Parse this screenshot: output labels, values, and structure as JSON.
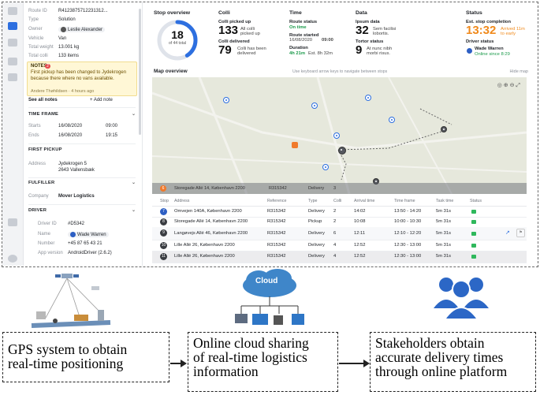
{
  "sidebar": {
    "route_id_label": "Route ID",
    "route_id_value": "R4123875712231312...",
    "type_label": "Type",
    "type_value": "Solution",
    "owner_label": "Owner",
    "owner_value": "Leslie Alexander",
    "vehicle_label": "Vehicle",
    "vehicle_value": "Van",
    "total_weight_label": "Total weight",
    "total_weight_value": "13.001 kg",
    "total_colli_label": "Total colli",
    "total_colli_value": "133 items",
    "notes_title": "NOTES",
    "notes_count": "2",
    "notes_body": "First pickup has been changed to Jydekrogen because there where no vans available.",
    "notes_meta": "Andere Thøhildsen · 4 hours ago",
    "see_all_notes": "See all notes",
    "add_note": "+ Add note",
    "timeframe_title": "TIME FRAME",
    "starts_label": "Starts",
    "starts_date": "16/08/2020",
    "starts_time": "09:00",
    "ends_label": "Ends",
    "ends_date": "16/08/2020",
    "ends_time": "19:15",
    "first_pickup_title": "FIRST PICKUP",
    "address_label": "Address",
    "address_line1": "Jydekrogen 5",
    "address_line2": "2643 Vallensbæk",
    "fulfiller_title": "FULFILLER",
    "company_label": "Company",
    "company_value": "Mover Logistics",
    "driver_title": "DRIVER",
    "driver_id_label": "Driver ID",
    "driver_id_value": "#D5342",
    "name_label": "Name",
    "name_value": "Wade Warren",
    "number_label": "Number",
    "number_value": "+45 87 65 43 21",
    "app_label": "App version",
    "app_value": "AndroidDriver (2.6.2)"
  },
  "overview": {
    "stop_title": "Stop overview",
    "stop_done": "18",
    "stop_total": "of 44 total",
    "colli_title": "Colli",
    "picked_label": "Colli picked up",
    "picked_value": "133",
    "picked_sub1": "All colli",
    "picked_sub2": "picked up",
    "delivered_label": "Colli delivered",
    "delivered_value": "79",
    "delivered_sub1": "Colli has been",
    "delivered_sub2": "delivered",
    "time_title": "Time",
    "route_status_label": "Route status",
    "route_status_value": "On time",
    "route_started_label": "Route started",
    "route_started_date": "16/08/2020",
    "route_started_time": "09:00",
    "duration_label": "Duration",
    "duration_value": "4h 21m",
    "duration_est": "Est. 8h 32m",
    "data_title": "Data",
    "ipsum_label": "Ipsum data",
    "ipsum_value": "32",
    "ipsum_sub1": "Sem facilisi",
    "ipsum_sub2": "lobortis.",
    "tortor_label": "Tortor status",
    "tortor_value": "9",
    "tortor_sub1": "At nunc nibh",
    "tortor_sub2": "morbi risus.",
    "status_title": "Status",
    "est_stop_label": "Est. stop completion",
    "est_stop_value": "13:32",
    "est_stop_sub1": "Arrived 11m",
    "est_stop_sub2": "to early",
    "driver_status_label": "Driver status",
    "driver_status_name": "Wade Warren",
    "driver_status_online": "Online since 8:29"
  },
  "map": {
    "title": "Map overview",
    "hint": "Use keyboard arrow keys to navigate between stops",
    "hide": "Hide map",
    "banner_num": "6",
    "banner_address": "Storegade Allé 14, København 2200",
    "banner_ref": "R315342",
    "banner_type": "Delivery",
    "banner_colli": "3"
  },
  "table": {
    "headers": [
      "Stop",
      "Address",
      "Reference",
      "Type",
      "Colli",
      "Arrival time",
      "Time frame",
      "Task time",
      "Status"
    ],
    "rows": [
      {
        "stop": "7",
        "address": "Omvejen 140A, København 2200",
        "ref": "R315342",
        "type": "Delivery",
        "colli": "2",
        "arrival": "14:02",
        "frame": "13:50 - 14:20",
        "task": "5m 31s"
      },
      {
        "stop": "8",
        "address": "Storegade Allé 14, København 2200",
        "ref": "R315342",
        "type": "Pickup",
        "colli": "2",
        "arrival": "10:08",
        "frame": "10:00 - 10:30",
        "task": "5m 31s"
      },
      {
        "stop": "9",
        "address": "Langøvejs Allé 46, København 2200",
        "ref": "R315342",
        "type": "Delivery",
        "colli": "6",
        "arrival": "12:11",
        "frame": "12:10 - 12:20",
        "task": "5m 31s"
      },
      {
        "stop": "10",
        "address": "Lille Allé 26, København 2200",
        "ref": "R315342",
        "type": "Delivery",
        "colli": "4",
        "arrival": "12:52",
        "frame": "12:30 - 13:00",
        "task": "5m 31s"
      },
      {
        "stop": "11",
        "address": "Lille Allé 26, København 2200",
        "ref": "R315342",
        "type": "Delivery",
        "colli": "4",
        "arrival": "12:52",
        "frame": "12:30 - 13:00",
        "task": "5m 31s"
      }
    ]
  },
  "diagram": {
    "box1": [
      "GPS system to obtain",
      "real-time positioning"
    ],
    "box2": [
      "Online cloud sharing",
      "of real-time logistics",
      "information"
    ],
    "box3": [
      "Stakeholders obtain",
      "accurate delivery times",
      "through online platform"
    ],
    "cloud_label": "Cloud"
  },
  "colors": {
    "accent": "#2d6fe0",
    "ok": "#1a9a4a",
    "warn": "#f08a1c",
    "stakeholder": "#2c67c6"
  },
  "icons": [
    "layers-icon",
    "list-icon",
    "map-icon",
    "chat-icon",
    "box-icon",
    "settings-icon",
    "satellite-icon",
    "cloud-icon",
    "users-icon",
    "arrow-right-icon"
  ]
}
